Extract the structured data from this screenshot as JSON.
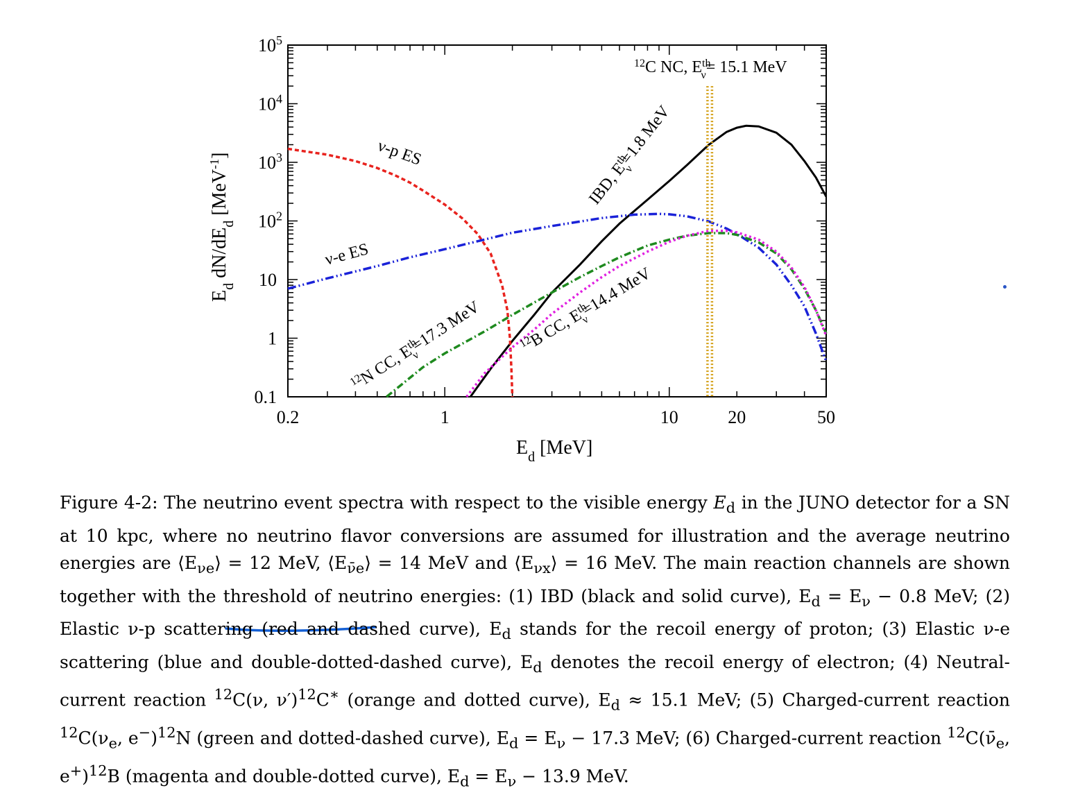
{
  "chart_data": {
    "type": "line",
    "x_scale": "log",
    "y_scale": "log",
    "xlim": [
      0.2,
      50
    ],
    "ylim": [
      0.1,
      100000
    ],
    "xlabel_main": "E",
    "xlabel_sub": "d",
    "xlabel_unit": " [MeV]",
    "ylabel_parts": {
      "a": "E",
      "a_sub": "d",
      "b": " dN/dE",
      "b_sub": "d",
      "c": " [MeV",
      "c_sup": "-1",
      "d": "]"
    },
    "x_ticks": [
      {
        "value": 0.2,
        "label": "0.2"
      },
      {
        "value": 1,
        "label": "1"
      },
      {
        "value": 10,
        "label": "10"
      },
      {
        "value": 20,
        "label": "20"
      },
      {
        "value": 50,
        "label": "50"
      }
    ],
    "y_ticks": [
      {
        "value": 0.1,
        "label": "0.1"
      },
      {
        "value": 1,
        "label": "1"
      },
      {
        "value": 10,
        "label": "10"
      },
      {
        "value": 100,
        "label": "10",
        "sup": "2"
      },
      {
        "value": 1000,
        "label": "10",
        "sup": "3"
      },
      {
        "value": 10000,
        "label": "10",
        "sup": "4"
      },
      {
        "value": 100000,
        "label": "10",
        "sup": "5"
      }
    ],
    "series": [
      {
        "id": "ibd",
        "color": "#000000",
        "dash": "none",
        "label_parts": {
          "a": "IBD, E",
          "sup": "th",
          "sub": "ν",
          "b": "=1.8 MeV"
        },
        "points": [
          [
            1.3,
            0.1
          ],
          [
            1.6,
            0.3
          ],
          [
            2.0,
            0.9
          ],
          [
            2.5,
            2.5
          ],
          [
            3,
            6
          ],
          [
            4,
            18
          ],
          [
            5,
            45
          ],
          [
            6,
            90
          ],
          [
            8,
            230
          ],
          [
            10,
            480
          ],
          [
            12,
            900
          ],
          [
            15,
            2000
          ],
          [
            18,
            3300
          ],
          [
            20,
            3900
          ],
          [
            22,
            4200
          ],
          [
            25,
            4100
          ],
          [
            30,
            3200
          ],
          [
            35,
            2000
          ],
          [
            40,
            1050
          ],
          [
            45,
            550
          ],
          [
            50,
            260
          ]
        ]
      },
      {
        "id": "nu-p",
        "color": "#e8231e",
        "dash": "6,4",
        "label_parts": {
          "a": "ν-p ES"
        },
        "points": [
          [
            0.2,
            1700
          ],
          [
            0.3,
            1350
          ],
          [
            0.4,
            1050
          ],
          [
            0.5,
            800
          ],
          [
            0.6,
            600
          ],
          [
            0.7,
            450
          ],
          [
            0.8,
            330
          ],
          [
            1.0,
            190
          ],
          [
            1.2,
            110
          ],
          [
            1.4,
            60
          ],
          [
            1.6,
            28
          ],
          [
            1.8,
            8
          ],
          [
            1.9,
            3
          ],
          [
            1.95,
            1
          ],
          [
            1.98,
            0.3
          ],
          [
            2.0,
            0.1
          ]
        ]
      },
      {
        "id": "nu-e",
        "color": "#1a22d8",
        "dash": "12,4,2,4,2,4",
        "label_parts": {
          "a": "ν-e ES"
        },
        "points": [
          [
            0.2,
            7
          ],
          [
            0.3,
            10.5
          ],
          [
            0.5,
            17
          ],
          [
            0.7,
            24
          ],
          [
            1,
            33
          ],
          [
            1.5,
            48
          ],
          [
            2,
            63
          ],
          [
            3,
            82
          ],
          [
            5,
            112
          ],
          [
            7,
            128
          ],
          [
            9,
            132
          ],
          [
            10,
            130
          ],
          [
            12,
            120
          ],
          [
            15,
            98
          ],
          [
            18,
            74
          ],
          [
            20,
            60
          ],
          [
            25,
            35
          ],
          [
            30,
            18
          ],
          [
            35,
            8
          ],
          [
            40,
            3.5
          ],
          [
            45,
            1.2
          ],
          [
            50,
            0.4
          ]
        ]
      },
      {
        "id": "c-nc",
        "color": "#d4a017",
        "dash": "2,3",
        "label_parts": {
          "a": "C NC, E",
          "pre_sup": "12",
          "sup": "th",
          "sub": "ν",
          "b": "= 15.1 MeV"
        },
        "vlines": [
          14.8,
          15.5
        ],
        "vline_top": 20000
      },
      {
        "id": "n-cc",
        "color": "#1f8a1f",
        "dash": "10,4,2,4",
        "label_parts": {
          "pre_sup": "12",
          "a": "N CC, E",
          "sup": "th",
          "sub": "ν",
          "b": "=17.3 MeV"
        },
        "points": [
          [
            0.55,
            0.1
          ],
          [
            0.8,
            0.32
          ],
          [
            1.0,
            0.55
          ],
          [
            1.5,
            1.3
          ],
          [
            2,
            2.5
          ],
          [
            3,
            6
          ],
          [
            4,
            11
          ],
          [
            5,
            17
          ],
          [
            6,
            24
          ],
          [
            8,
            38
          ],
          [
            10,
            48
          ],
          [
            12,
            56
          ],
          [
            15,
            62
          ],
          [
            18,
            62
          ],
          [
            20,
            58
          ],
          [
            25,
            43
          ],
          [
            30,
            28
          ],
          [
            35,
            15
          ],
          [
            40,
            7
          ],
          [
            45,
            3
          ],
          [
            50,
            1.2
          ]
        ]
      },
      {
        "id": "b-cc",
        "color": "#e020e0",
        "dash": "3,4",
        "label_parts": {
          "pre_sup": "12",
          "a": "B CC, E",
          "sup": "th",
          "sub": "ν",
          "b": "=14.4 MeV"
        },
        "points": [
          [
            1.25,
            0.1
          ],
          [
            1.5,
            0.25
          ],
          [
            2,
            0.7
          ],
          [
            2.5,
            1.4
          ],
          [
            3,
            2.6
          ],
          [
            4,
            6
          ],
          [
            5,
            11
          ],
          [
            6,
            17
          ],
          [
            8,
            30
          ],
          [
            10,
            44
          ],
          [
            12,
            56
          ],
          [
            15,
            68
          ],
          [
            18,
            68
          ],
          [
            20,
            64
          ],
          [
            25,
            48
          ],
          [
            30,
            30
          ],
          [
            35,
            16
          ],
          [
            40,
            7.5
          ],
          [
            45,
            3
          ],
          [
            50,
            1.1
          ]
        ]
      }
    ]
  },
  "caption": {
    "figure_label": "Figure 4-2:",
    "text_1": " The neutrino event spectra with respect to the visible energy ",
    "Ed": "E",
    "d": "d",
    "text_2": " in the JUNO detector for a SN at 10 kpc, where no neutrino flavor conversions are assumed for illustration and the average neutrino energies are ⟨E",
    "sub_nue": "νe",
    "text_3": "⟩ = 12 MeV, ⟨E",
    "sub_nuebar": "ν̄e",
    "text_4": "⟩ = 14 MeV and ⟨E",
    "sub_nux": "νx",
    "text_5": "⟩ = 16 MeV. The main reaction channels are shown together with the threshold of neutrino energies: (1) IBD (black and solid curve), E",
    "text_6": " = E",
    "nu": "ν",
    "text_7": " − 0.8 MeV; (2) Elastic ν-p scattering (red and dashed curve), E",
    "text_8": " stands for the recoil energy of proton; (3) Elastic ν-e scattering (blue and double-dotted-dashed curve), E",
    "text_9": " denotes the recoil energy of electron; (4) Neutral-current reaction ",
    "sup12": "12",
    "text_10": "C(ν, ν′)",
    "text_11": "C",
    "star": "∗",
    "text_12": " (orange and dotted curve), E",
    "text_13": " ≈ 15.1 MeV; (5) Charged-current reaction ",
    "text_14": "C(ν",
    "sub_e": "e",
    "text_15": ", e",
    "minus": "−",
    "text_16": ")",
    "text_17": "N (green and dotted-dashed curve), E",
    "text_18": " = E",
    "text_19": " − 17.3 MeV; (6) Charged-current reaction ",
    "text_20": "C(ν̄",
    "text_21": ", e",
    "plus": "+",
    "text_22": ")",
    "text_23": "B (magenta and double-dotted curve), E",
    "text_24": " = E",
    "text_25": " − 13.9 MeV."
  }
}
